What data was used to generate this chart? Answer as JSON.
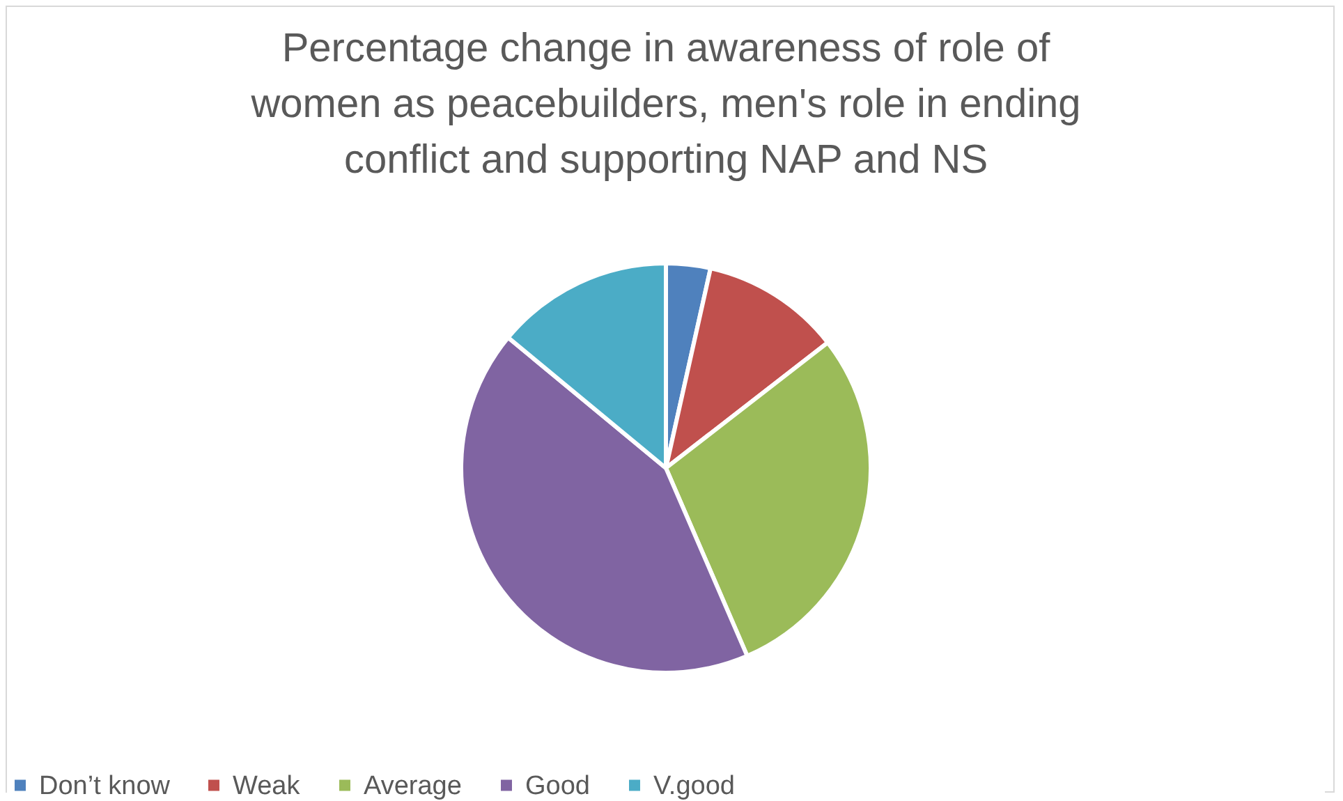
{
  "chart_data": {
    "type": "pie",
    "title": "Percentage change in awareness of role of women as peacebuilders, men's role in ending conflict and supporting NAP and NS",
    "categories": [
      "Don’t know",
      "Weak",
      "Average",
      "Good",
      "V.good"
    ],
    "values": [
      3.5,
      11,
      29,
      42.5,
      14
    ],
    "colors": [
      "#4f81bd",
      "#c0504d",
      "#9bbb59",
      "#8064a2",
      "#4bacc6"
    ],
    "legend": "bottom"
  }
}
